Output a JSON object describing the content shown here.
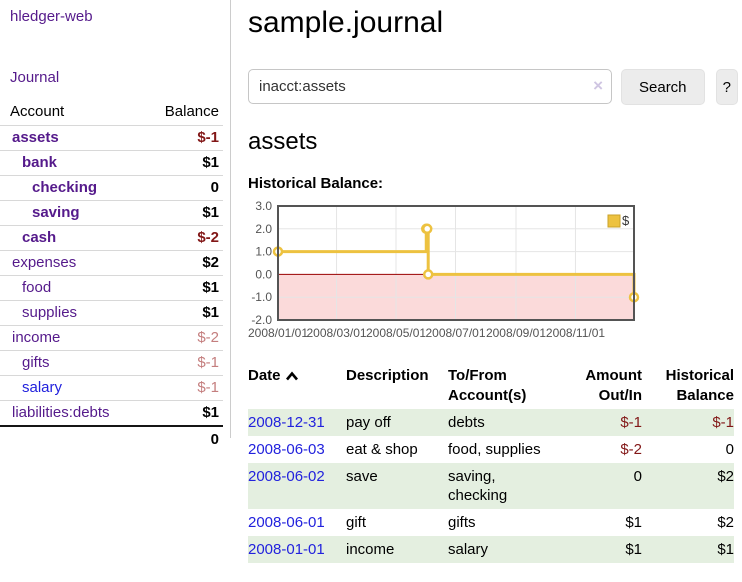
{
  "app": {
    "title": "hledger-web",
    "nav_journal": "Journal"
  },
  "sidebar": {
    "accounts_header": {
      "account": "Account",
      "balance": "Balance"
    },
    "accounts": [
      {
        "name": "assets",
        "level": 1,
        "bold": true,
        "balance": "$-1"
      },
      {
        "name": "bank",
        "level": 2,
        "bold": true,
        "balance": "$1"
      },
      {
        "name": "checking",
        "level": 3,
        "bold": true,
        "balance": "0"
      },
      {
        "name": "saving",
        "level": 3,
        "bold": true,
        "balance": "$1"
      },
      {
        "name": "cash",
        "level": 2,
        "bold": true,
        "balance": "$-2"
      },
      {
        "name": "expenses",
        "level": 1,
        "bold": false,
        "balance": "$2"
      },
      {
        "name": "food",
        "level": 2,
        "bold": false,
        "balance": "$1"
      },
      {
        "name": "supplies",
        "level": 2,
        "bold": false,
        "balance": "$1"
      },
      {
        "name": "income",
        "level": 1,
        "bold": false,
        "balance": "$-2"
      },
      {
        "name": "gifts",
        "level": 2,
        "bold": false,
        "balance": "$-1"
      },
      {
        "name": "salary",
        "level": 2,
        "bold": false,
        "balance": "$-1",
        "link_blue": true
      },
      {
        "name": "liabilities:debts",
        "level": 1,
        "bold": false,
        "balance": "$1"
      }
    ],
    "total": "0"
  },
  "header": {
    "title": "sample.journal"
  },
  "search": {
    "value": "inacct:assets",
    "clear_icon": "×",
    "button": "Search",
    "help_button": "?"
  },
  "main": {
    "account_title": "assets",
    "chart_label": "Historical Balance:"
  },
  "chart_data": {
    "type": "line",
    "style": "step",
    "title": "Historical Balance:",
    "series": [
      {
        "name": "$",
        "color": "#edc240",
        "points": [
          [
            "2008-01-01",
            1
          ],
          [
            "2008-06-01",
            2
          ],
          [
            "2008-06-02",
            2
          ],
          [
            "2008-06-03",
            0
          ],
          [
            "2008-12-31",
            -1
          ]
        ]
      }
    ],
    "xlim": [
      "2008-01-01",
      "2008-12-31"
    ],
    "ylim": [
      -2,
      3
    ],
    "x_ticks": [
      "2008/01/01",
      "2008/03/01",
      "2008/05/01",
      "2008/07/01",
      "2008/09/01",
      "2008/11/01"
    ],
    "y_ticks": [
      "3.0",
      "2.0",
      "1.0",
      "0.0",
      "-1.0",
      "-2.0"
    ],
    "grid": true,
    "legend_position": "top-right",
    "colors": {
      "negative_region": "#fbdada",
      "zero_line": "#990000",
      "gridline": "#e5e5e5",
      "border": "#545454",
      "tick_text": "#545454",
      "legend_box_border": "#c9a22a"
    }
  },
  "register": {
    "columns": [
      [
        "Date"
      ],
      [
        "Description"
      ],
      [
        "To/From",
        "Account(s)"
      ],
      [
        "Amount",
        "Out/In"
      ],
      [
        "Historical",
        "Balance"
      ]
    ],
    "sort": {
      "column": "Date",
      "direction": "ascending"
    },
    "rows": [
      {
        "date": "2008-12-31",
        "description": "pay off",
        "accounts": "debts",
        "amount": "$-1",
        "balance": "$-1"
      },
      {
        "date": "2008-06-03",
        "description": "eat & shop",
        "accounts": "food, supplies",
        "amount": "$-2",
        "balance": "0"
      },
      {
        "date": "2008-06-02",
        "description": "save",
        "accounts": "saving, checking",
        "amount": "0",
        "balance": "$2"
      },
      {
        "date": "2008-06-01",
        "description": "gift",
        "accounts": "gifts",
        "amount": "$1",
        "balance": "$2"
      },
      {
        "date": "2008-01-01",
        "description": "income",
        "accounts": "salary",
        "amount": "$1",
        "balance": "$1"
      }
    ]
  },
  "colors": {
    "link_purple": "#551a8b",
    "link_blue": "#2222dd",
    "negative": "#821717",
    "negative_dim": "#c47e7e",
    "row_shade_green": "#e4efe0",
    "series_gold": "#edc240"
  }
}
